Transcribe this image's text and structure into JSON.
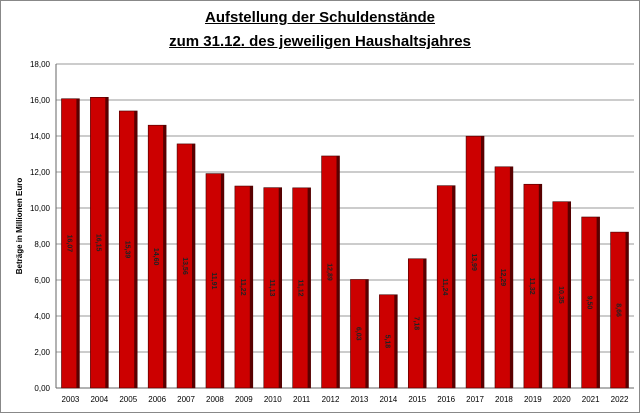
{
  "chart_data": {
    "type": "bar",
    "title": [
      "Aufstellung der Schuldenstände",
      "zum 31.12. des jeweiligen Haushaltsjahres"
    ],
    "xlabel": "",
    "ylabel": "Beträge in Millionen Euro",
    "ylim": [
      0,
      18
    ],
    "yticks": [
      "0,00",
      "2,00",
      "4,00",
      "6,00",
      "8,00",
      "10,00",
      "12,00",
      "14,00",
      "16,00",
      "18,00"
    ],
    "grid": true,
    "legend": "none",
    "categories": [
      "2003",
      "2004",
      "2005",
      "2006",
      "2007",
      "2008",
      "2009",
      "2010",
      "2011",
      "2012",
      "2013",
      "2014",
      "2015",
      "2016",
      "2017",
      "2018",
      "2019",
      "2020",
      "2021",
      "2022"
    ],
    "values": [
      16.07,
      16.15,
      15.39,
      14.6,
      13.56,
      11.91,
      11.22,
      11.13,
      11.12,
      12.89,
      6.03,
      5.18,
      7.18,
      11.24,
      13.99,
      12.29,
      11.32,
      10.35,
      9.5,
      8.66
    ],
    "data_labels": [
      "16,07",
      "16,15",
      "15,39",
      "14,60",
      "13,56",
      "11,91",
      "11,22",
      "11,13",
      "11,12",
      "12,89",
      "6,03",
      "5,18",
      "7,18",
      "11,24",
      "13,99",
      "12,29",
      "11,32",
      "10,35",
      "9,50",
      "8,66"
    ],
    "colors": {
      "bar": "#cc0000",
      "bar_side": "#5a0000"
    }
  }
}
